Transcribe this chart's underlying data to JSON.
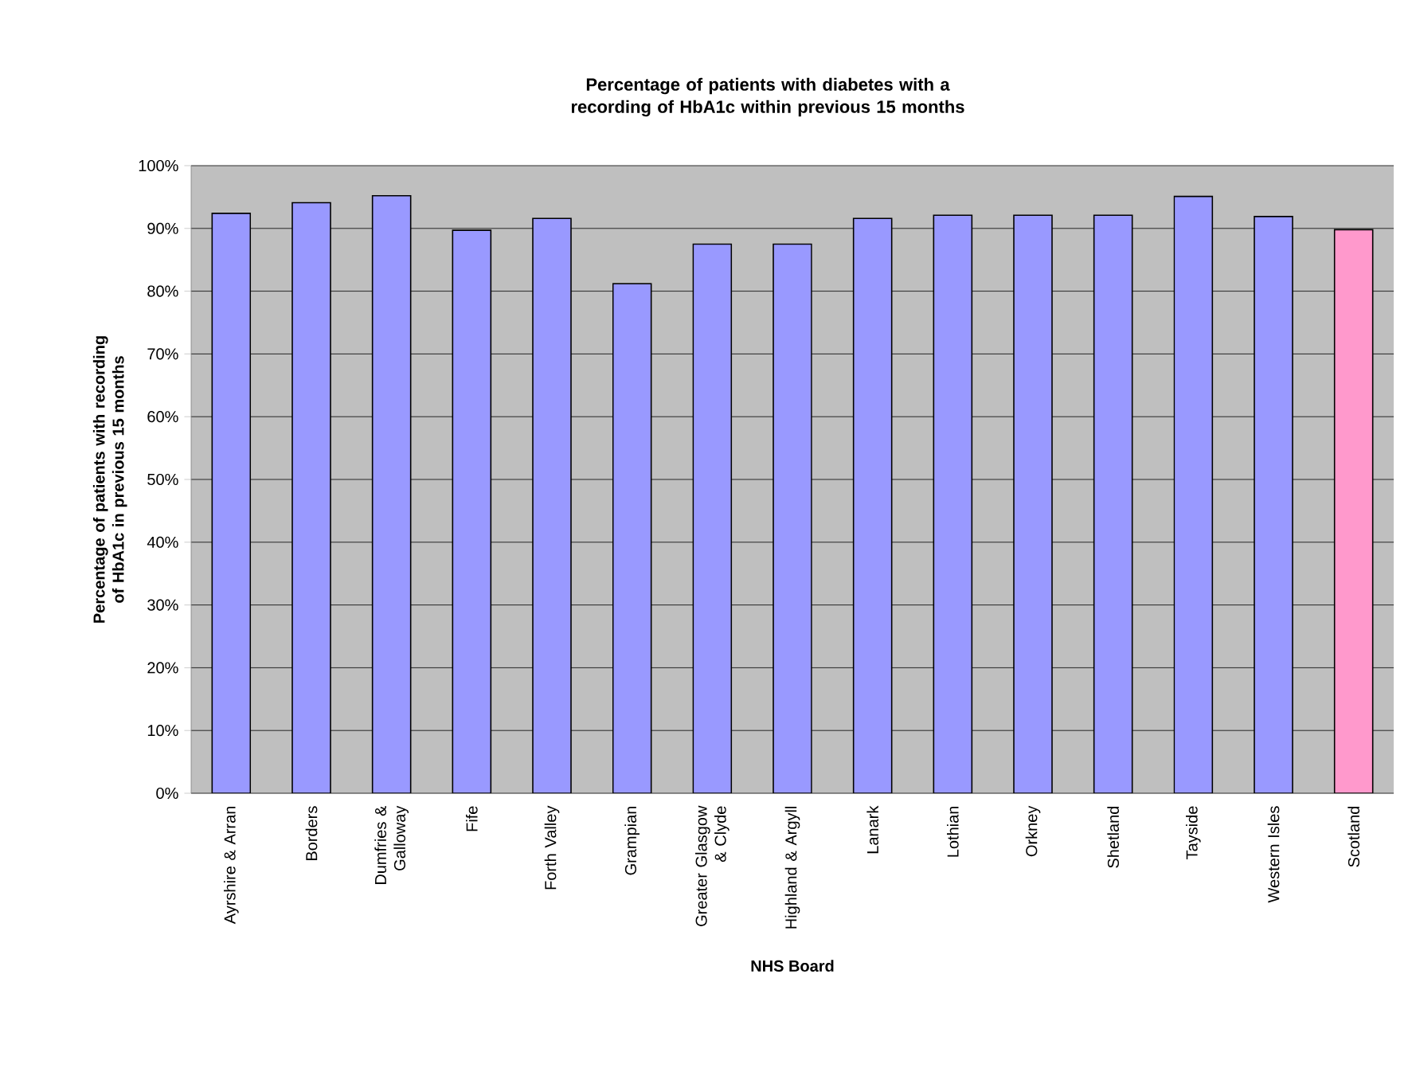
{
  "chart_data": {
    "type": "bar",
    "title": "Percentage of patients with diabetes with a recording of HbA1c within previous 15 months",
    "xlabel": "NHS Board",
    "ylabel": "Percentage of patients with recording of HbA1c in previous 15 months",
    "categories": [
      "Ayrshire & Arran",
      "Borders",
      "Dumfries & Galloway",
      "Fife",
      "Forth Valley",
      "Grampian",
      "Greater Glasgow & Clyde",
      "Highland & Argyll",
      "Lanark",
      "Lothian",
      "Orkney",
      "Shetland",
      "Tayside",
      "Western Isles",
      "Scotland"
    ],
    "values": [
      92.4,
      94.1,
      95.2,
      89.7,
      91.6,
      81.2,
      87.5,
      87.5,
      91.6,
      92.1,
      92.1,
      92.1,
      95.1,
      91.9,
      89.8
    ],
    "colors": [
      "#9999ff",
      "#9999ff",
      "#9999ff",
      "#9999ff",
      "#9999ff",
      "#9999ff",
      "#9999ff",
      "#9999ff",
      "#9999ff",
      "#9999ff",
      "#9999ff",
      "#9999ff",
      "#9999ff",
      "#9999ff",
      "#ff99cc"
    ],
    "ylim": [
      0,
      100
    ],
    "yticks": [
      {
        "value": 0,
        "label": "0%"
      },
      {
        "value": 10,
        "label": "10%"
      },
      {
        "value": 20,
        "label": "20%"
      },
      {
        "value": 30,
        "label": "30%"
      },
      {
        "value": 40,
        "label": "40%"
      },
      {
        "value": 50,
        "label": "50%"
      },
      {
        "value": 60,
        "label": "60%"
      },
      {
        "value": 70,
        "label": "70%"
      },
      {
        "value": 80,
        "label": "80%"
      },
      {
        "value": 90,
        "label": "90%"
      },
      {
        "value": 100,
        "label": "100%"
      }
    ],
    "grid": "y"
  }
}
